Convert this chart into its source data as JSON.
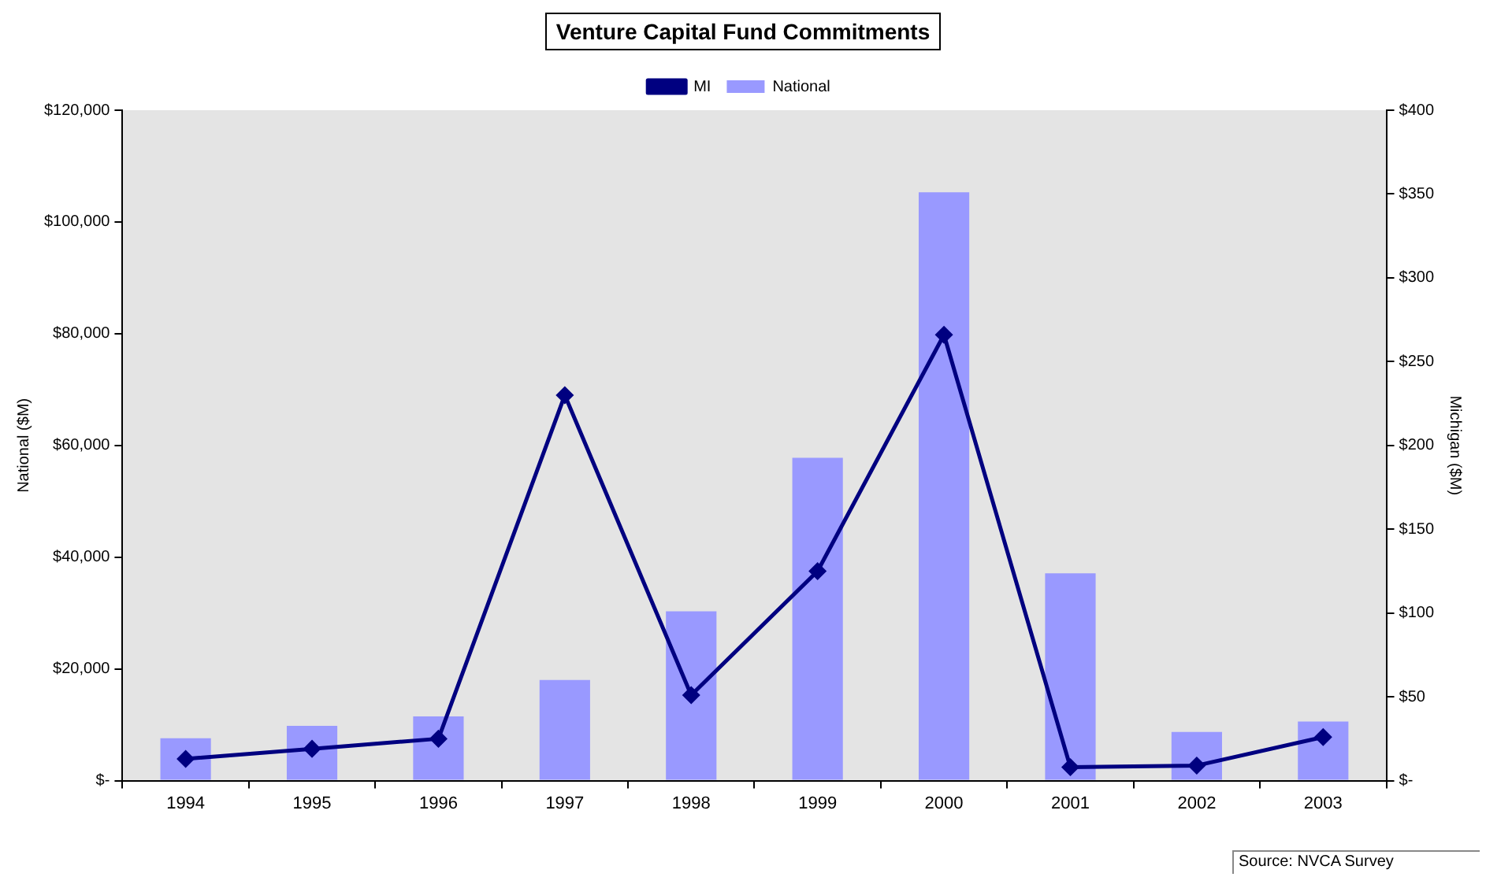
{
  "chart_data": {
    "type": "bar",
    "title": "Venture Capital Fund Commitments",
    "ylabel": "National ($M)",
    "y2label": "Michigan ($M)",
    "categories": [
      "1994",
      "1995",
      "1996",
      "1997",
      "1998",
      "1999",
      "2000",
      "2001",
      "2002",
      "2003"
    ],
    "series": [
      {
        "name": "National",
        "color": "#9999ff",
        "values": [
          7600,
          9800,
          11500,
          18000,
          30300,
          57800,
          105300,
          37100,
          8700,
          10600
        ]
      },
      {
        "name": "MI",
        "type": "line",
        "axis": "y2",
        "color": "#000080",
        "values": [
          13,
          19,
          25,
          230,
          51,
          125,
          266,
          8,
          9,
          26
        ]
      }
    ],
    "ylim": [
      0,
      120000
    ],
    "yticks": [
      {
        "value": 0,
        "label": "$-"
      },
      {
        "value": 20000,
        "label": "$20,000"
      },
      {
        "value": 40000,
        "label": "$40,000"
      },
      {
        "value": 60000,
        "label": "$60,000"
      },
      {
        "value": 80000,
        "label": "$80,000"
      },
      {
        "value": 100000,
        "label": "$100,000"
      },
      {
        "value": 120000,
        "label": "$120,000"
      }
    ],
    "y2lim": [
      0,
      400
    ],
    "y2ticks": [
      {
        "value": 0,
        "label": "$-"
      },
      {
        "value": 50,
        "label": "$50"
      },
      {
        "value": 100,
        "label": "$100"
      },
      {
        "value": 150,
        "label": "$150"
      },
      {
        "value": 200,
        "label": "$200"
      },
      {
        "value": 250,
        "label": "$250"
      },
      {
        "value": 300,
        "label": "$300"
      },
      {
        "value": 350,
        "label": "$350"
      },
      {
        "value": 400,
        "label": "$400"
      }
    ],
    "grid": false,
    "legend": "top",
    "marker": "diamond",
    "annotations": [
      "Source: NVCA Survey"
    ]
  }
}
